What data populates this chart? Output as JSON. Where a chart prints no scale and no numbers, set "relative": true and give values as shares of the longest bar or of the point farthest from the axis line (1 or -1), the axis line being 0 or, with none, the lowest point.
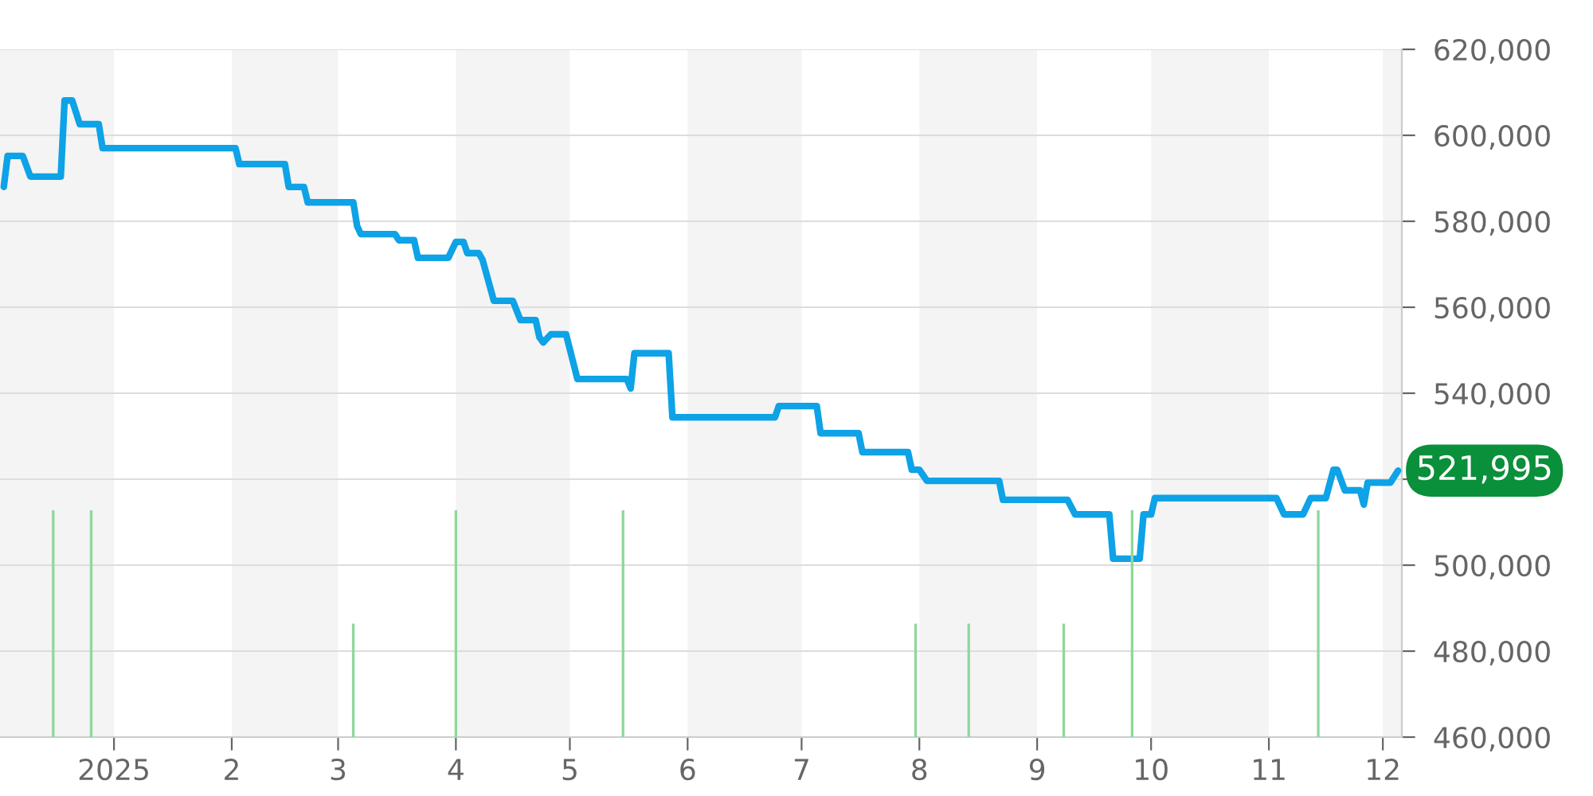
{
  "chart_data": [
    {
      "type": "line",
      "xlim": [
        "2024-12-02",
        "2025-12-06"
      ],
      "ylim": [
        460000,
        620000
      ],
      "xticks": [
        {
          "value": "2025-01-01",
          "label": "2025"
        },
        {
          "value": "2025-02-01",
          "label": "2"
        },
        {
          "value": "2025-03-01",
          "label": "3"
        },
        {
          "value": "2025-04-01",
          "label": "4"
        },
        {
          "value": "2025-05-01",
          "label": "5"
        },
        {
          "value": "2025-06-01",
          "label": "6"
        },
        {
          "value": "2025-07-01",
          "label": "7"
        },
        {
          "value": "2025-08-01",
          "label": "8"
        },
        {
          "value": "2025-09-01",
          "label": "9"
        },
        {
          "value": "2025-10-01",
          "label": "10"
        },
        {
          "value": "2025-11-01",
          "label": "11"
        },
        {
          "value": "2025-12-01",
          "label": "12"
        }
      ],
      "yticks": [
        {
          "value": 460000,
          "label": "460,000"
        },
        {
          "value": 480000,
          "label": "480,000"
        },
        {
          "value": 500000,
          "label": "500,000"
        },
        {
          "value": 520000,
          "label": null
        },
        {
          "value": 540000,
          "label": "540,000"
        },
        {
          "value": 560000,
          "label": "560,000"
        },
        {
          "value": 580000,
          "label": "580,000"
        },
        {
          "value": 600000,
          "label": "600,000"
        },
        {
          "value": 620000,
          "label": "620,000"
        }
      ],
      "grid": "y",
      "marker": "none",
      "line_style": "solid",
      "bands": [
        {
          "axis": "x",
          "from": "2024-12-02",
          "to": "2025-01-01",
          "color": "#f4f4f4"
        },
        {
          "axis": "x",
          "from": "2025-02-01",
          "to": "2025-03-01",
          "color": "#f4f4f4"
        },
        {
          "axis": "x",
          "from": "2025-04-01",
          "to": "2025-05-01",
          "color": "#f4f4f4"
        },
        {
          "axis": "x",
          "from": "2025-06-01",
          "to": "2025-07-01",
          "color": "#f4f4f4"
        },
        {
          "axis": "x",
          "from": "2025-08-01",
          "to": "2025-09-01",
          "color": "#f4f4f4"
        },
        {
          "axis": "x",
          "from": "2025-10-01",
          "to": "2025-11-01",
          "color": "#f4f4f4"
        },
        {
          "axis": "x",
          "from": "2025-12-01",
          "to": "2025-12-06",
          "color": "#f4f4f4"
        }
      ],
      "annotations": [
        {
          "text": "521,995",
          "x": "2025-12-05",
          "y": 521995
        }
      ],
      "series": [
        {
          "color": "#0ea2e6",
          "x": [
            "2024-12-03",
            "2024-12-04",
            "2024-12-08",
            "2024-12-10",
            "2024-12-18",
            "2024-12-19",
            "2024-12-21",
            "2024-12-23",
            "2024-12-28",
            "2024-12-29",
            "2025-02-02",
            "2025-02-03",
            "2025-02-15",
            "2025-02-16",
            "2025-02-20",
            "2025-02-21",
            "2025-03-05",
            "2025-03-06",
            "2025-03-07",
            "2025-03-16",
            "2025-03-17",
            "2025-03-21",
            "2025-03-22",
            "2025-03-30",
            "2025-04-01",
            "2025-04-03",
            "2025-04-04",
            "2025-04-07",
            "2025-04-08",
            "2025-04-11",
            "2025-04-16",
            "2025-04-18",
            "2025-04-22",
            "2025-04-23",
            "2025-04-24",
            "2025-04-26",
            "2025-04-30",
            "2025-05-03",
            "2025-05-16",
            "2025-05-17",
            "2025-05-18",
            "2025-05-27",
            "2025-05-28",
            "2025-06-24",
            "2025-06-25",
            "2025-07-05",
            "2025-07-06",
            "2025-07-16",
            "2025-07-17",
            "2025-07-29",
            "2025-07-30",
            "2025-08-01",
            "2025-08-03",
            "2025-08-22",
            "2025-08-23",
            "2025-09-09",
            "2025-09-11",
            "2025-09-20",
            "2025-09-21",
            "2025-09-28",
            "2025-09-29",
            "2025-10-01",
            "2025-10-02",
            "2025-11-03",
            "2025-11-05",
            "2025-11-10",
            "2025-11-12",
            "2025-11-16",
            "2025-11-18",
            "2025-11-19",
            "2025-11-21",
            "2025-11-25",
            "2025-11-26",
            "2025-11-27",
            "2025-12-03",
            "2025-12-05"
          ],
          "values": [
            588000,
            595200,
            595200,
            590400,
            590400,
            608100,
            608100,
            602600,
            602600,
            597000,
            597000,
            593300,
            593300,
            588000,
            588000,
            584400,
            584400,
            578900,
            577000,
            577000,
            575600,
            575600,
            571500,
            571500,
            575200,
            575200,
            572600,
            572600,
            571100,
            561500,
            561500,
            557000,
            557000,
            553000,
            551800,
            553700,
            553700,
            543300,
            543300,
            541100,
            549300,
            549300,
            534400,
            534400,
            537000,
            537000,
            530700,
            530700,
            526300,
            526300,
            522200,
            522200,
            519600,
            519600,
            515200,
            515200,
            511800,
            511800,
            501500,
            501500,
            511800,
            511800,
            515600,
            515600,
            511800,
            511800,
            515600,
            515600,
            522200,
            522200,
            517400,
            517400,
            514100,
            519200,
            519200,
            521995
          ]
        }
      ]
    },
    {
      "type": "bar",
      "relative": true,
      "xlim": [
        "2024-12-02",
        "2025-12-06"
      ],
      "x": [
        "2024-12-16",
        "2024-12-26",
        "2025-03-05",
        "2025-04-01",
        "2025-05-15",
        "2025-07-31",
        "2025-08-14",
        "2025-09-08",
        "2025-09-26",
        "2025-11-14"
      ],
      "series": [
        {
          "color": "#8fd89a",
          "values": [
            1,
            1,
            0.5,
            1,
            1,
            0.5,
            0.5,
            0.5,
            1,
            1
          ]
        }
      ]
    }
  ]
}
